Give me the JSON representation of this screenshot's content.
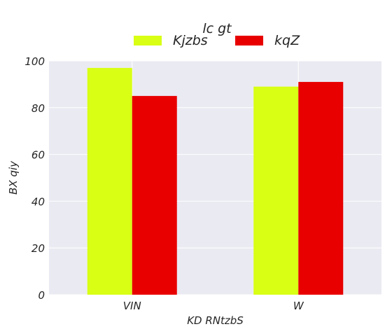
{
  "chart_data": {
    "type": "bar",
    "title": "",
    "legend_title": "lc gt",
    "legend_position": "top-center",
    "xlabel": "KD  RNtzbS",
    "ylabel": "BX qiy",
    "categories": [
      "VIN",
      "W"
    ],
    "series": [
      {
        "name": "Kjzbs",
        "values": [
          97,
          89
        ],
        "color": "#d8ff14"
      },
      {
        "name": "kqZ",
        "values": [
          85,
          91
        ],
        "color": "#e80000"
      }
    ],
    "ylim": [
      0,
      100
    ],
    "yticks": [
      0,
      20,
      40,
      60,
      80,
      100
    ],
    "grid": true,
    "background": "#eaeaf2"
  }
}
